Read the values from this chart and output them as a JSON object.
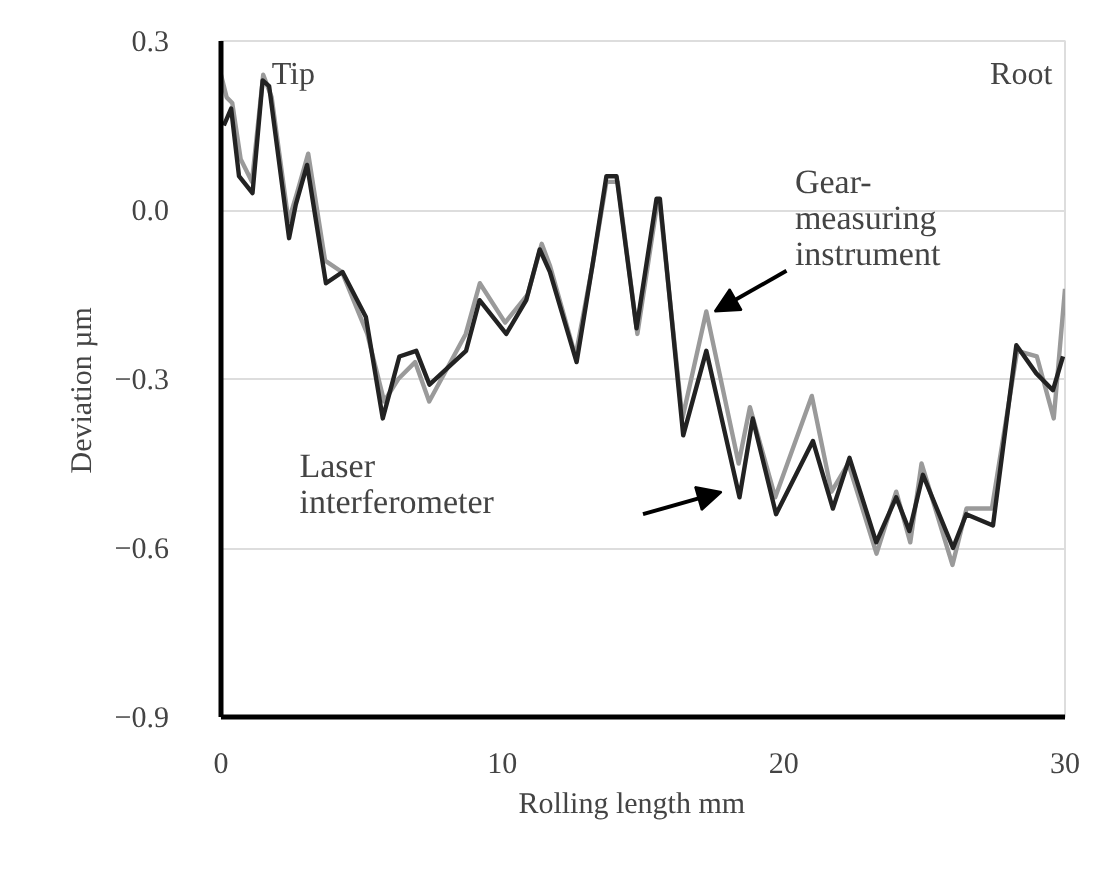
{
  "chart_data": {
    "type": "line",
    "xlabel": "Rolling length    mm",
    "ylabel": "Deviation    µm",
    "xlim": [
      0,
      30
    ],
    "ylim": [
      -0.9,
      0.3
    ],
    "xticks": [
      0,
      10,
      20,
      30
    ],
    "yticks": [
      0.3,
      {
        "value": 0,
        "label": "0.0"
      },
      -0.3,
      -0.6,
      -0.9
    ],
    "grid": "y",
    "marker": "none",
    "line_style": "solid",
    "annotations": [
      "Tip",
      "Root"
    ],
    "series": [
      {
        "name": "Gear-measuring instrument",
        "color": "#9a9a9a",
        "x": [
          0,
          0.2,
          0.4,
          0.7,
          1.1,
          1.5,
          1.8,
          2.4,
          2.7,
          3.1,
          3.7,
          4.3,
          5.2,
          5.8,
          6.3,
          6.9,
          7.4,
          8.7,
          9.2,
          10.1,
          10.9,
          11.4,
          11.7,
          12.6,
          13.2,
          13.7,
          14.1,
          14.8,
          15.5,
          15.6,
          16.4,
          17.25,
          18.4,
          18.8,
          19.7,
          21.0,
          21.7,
          22.3,
          23.3,
          24.0,
          24.5,
          24.9,
          26.0,
          26.5,
          27.4,
          28.3,
          29.0,
          29.6,
          30
        ],
        "values": [
          0.24,
          0.2,
          0.19,
          0.09,
          0.05,
          0.24,
          0.2,
          -0.02,
          0.03,
          0.1,
          -0.09,
          -0.11,
          -0.22,
          -0.34,
          -0.3,
          -0.27,
          -0.34,
          -0.22,
          -0.13,
          -0.2,
          -0.15,
          -0.06,
          -0.1,
          -0.26,
          -0.1,
          0.05,
          0.05,
          -0.22,
          0.01,
          0.01,
          -0.37,
          -0.18,
          -0.45,
          -0.35,
          -0.51,
          -0.33,
          -0.5,
          -0.45,
          -0.61,
          -0.5,
          -0.59,
          -0.45,
          -0.63,
          -0.53,
          -0.53,
          -0.25,
          -0.26,
          -0.37,
          -0.14
        ]
      },
      {
        "name": "Laser interferometer",
        "color": "#222222",
        "x": [
          0.1,
          0.36,
          0.64,
          1.12,
          1.48,
          1.71,
          2.42,
          2.66,
          3.06,
          3.73,
          4.32,
          5.15,
          5.75,
          6.34,
          6.94,
          7.41,
          8.71,
          9.19,
          10.14,
          10.85,
          11.33,
          11.69,
          12.64,
          13.23,
          13.7,
          14.06,
          14.77,
          15.48,
          15.6,
          16.43,
          17.25,
          18.43,
          18.9,
          19.73,
          21.04,
          21.75,
          22.34,
          23.29,
          24.0,
          24.47,
          24.95,
          26.02,
          26.49,
          27.44,
          28.27,
          28.98,
          29.57,
          29.93
        ],
        "values": [
          0.15,
          0.18,
          0.06,
          0.03,
          0.23,
          0.22,
          -0.05,
          0.01,
          0.08,
          -0.13,
          -0.11,
          -0.19,
          -0.37,
          -0.26,
          -0.25,
          -0.31,
          -0.25,
          -0.16,
          -0.22,
          -0.16,
          -0.07,
          -0.11,
          -0.27,
          -0.09,
          0.06,
          0.06,
          -0.21,
          0.02,
          0.02,
          -0.4,
          -0.25,
          -0.51,
          -0.37,
          -0.54,
          -0.41,
          -0.53,
          -0.44,
          -0.59,
          -0.51,
          -0.57,
          -0.47,
          -0.6,
          -0.54,
          -0.56,
          -0.24,
          -0.29,
          -0.32,
          -0.26
        ]
      }
    ]
  }
}
